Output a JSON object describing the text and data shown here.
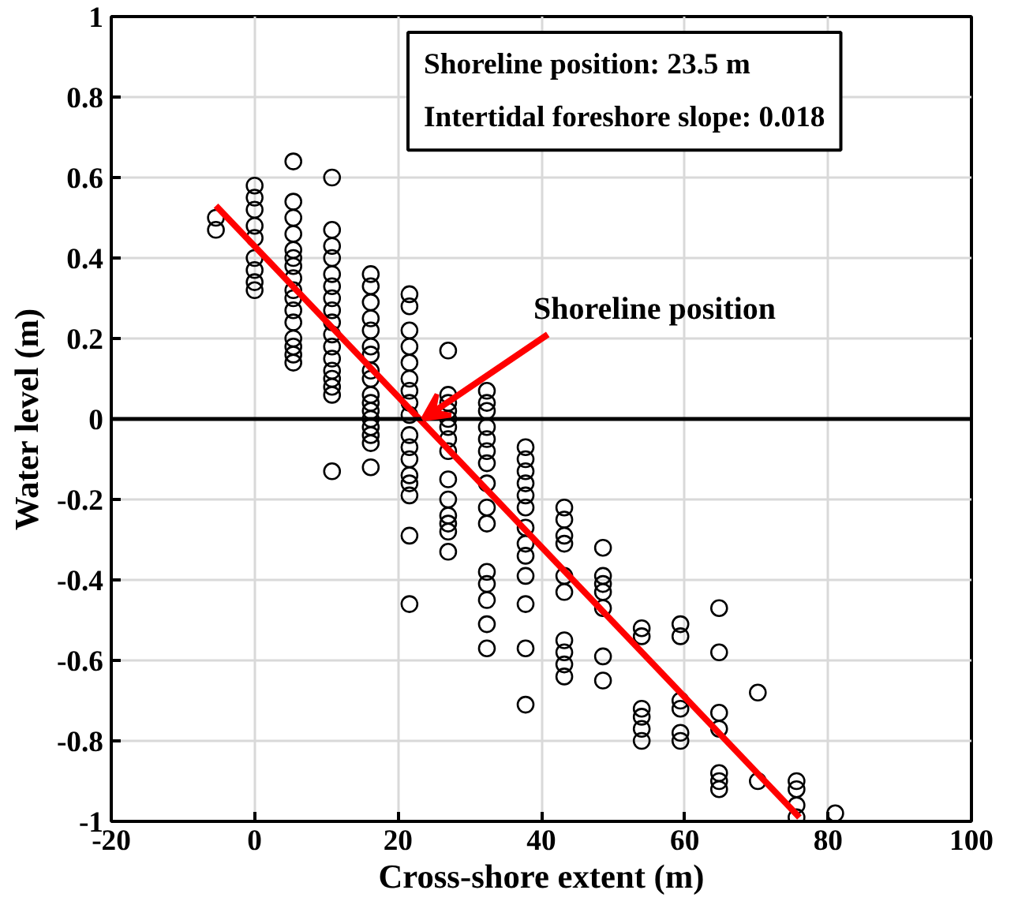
{
  "chart_data": {
    "type": "scatter",
    "xlabel": "Cross-shore extent (m)",
    "ylabel": "Water level (m)",
    "xlim": [
      -20,
      100
    ],
    "ylim": [
      -1,
      1
    ],
    "xticks": [
      -20,
      0,
      20,
      40,
      60,
      80,
      100
    ],
    "yticks": [
      -1,
      -0.8,
      -0.6,
      -0.4,
      -0.2,
      0,
      0.2,
      0.4,
      0.6,
      0.8,
      1
    ],
    "grid": true,
    "annotations": [
      "Shoreline position: 23.5 m",
      "Intertidal foreshore slope: 0.018",
      {
        "text": "Shoreline position",
        "x": 23.5,
        "y": 0
      }
    ],
    "ref_lines": [
      {
        "axis": "y",
        "value": 0,
        "color": "#000000"
      }
    ],
    "series": [
      {
        "type": "scatter",
        "marker": "circle",
        "color": "#000000",
        "x": [
          -5.4,
          -5.4,
          0,
          0,
          0,
          0,
          0,
          0,
          0,
          0,
          0,
          5.4,
          5.4,
          5.4,
          5.4,
          5.4,
          5.4,
          5.4,
          5.4,
          5.4,
          5.4,
          5.4,
          5.4,
          5.4,
          5.4,
          5.4,
          5.4,
          10.8,
          10.8,
          10.8,
          10.8,
          10.8,
          10.8,
          10.8,
          10.8,
          10.8,
          10.8,
          10.8,
          10.8,
          10.8,
          10.8,
          10.8,
          10.8,
          10.8,
          16.2,
          16.2,
          16.2,
          16.2,
          16.2,
          16.2,
          16.2,
          16.2,
          16.2,
          16.2,
          16.2,
          16.2,
          16.2,
          16.2,
          16.2,
          16.2,
          16.2,
          21.6,
          21.6,
          21.6,
          21.6,
          21.6,
          21.6,
          21.6,
          21.6,
          21.6,
          21.6,
          21.6,
          21.6,
          21.6,
          21.6,
          21.6,
          21.6,
          21.6,
          27,
          27,
          27,
          27,
          27,
          27,
          27,
          27,
          27,
          27,
          27,
          27,
          27,
          27,
          32.4,
          32.4,
          32.4,
          32.4,
          32.4,
          32.4,
          32.4,
          32.4,
          32.4,
          32.4,
          32.4,
          32.4,
          32.4,
          32.4,
          32.4,
          37.8,
          37.8,
          37.8,
          37.8,
          37.8,
          37.8,
          37.8,
          37.8,
          37.8,
          37.8,
          37.8,
          37.8,
          37.8,
          43.2,
          43.2,
          43.2,
          43.2,
          43.2,
          43.2,
          43.2,
          43.2,
          43.2,
          43.2,
          48.6,
          48.6,
          48.6,
          48.6,
          48.6,
          48.6,
          48.6,
          54,
          54,
          54,
          54,
          54,
          54,
          59.4,
          59.4,
          59.4,
          59.4,
          59.4,
          59.4,
          64.8,
          64.8,
          64.8,
          64.8,
          64.8,
          64.8,
          64.8,
          70.2,
          70.2,
          75.6,
          75.6,
          75.6,
          75.6,
          81
        ],
        "values": [
          0.5,
          0.47,
          0.58,
          0.55,
          0.52,
          0.48,
          0.45,
          0.4,
          0.37,
          0.34,
          0.32,
          0.64,
          0.54,
          0.5,
          0.46,
          0.42,
          0.4,
          0.38,
          0.35,
          0.32,
          0.3,
          0.27,
          0.24,
          0.2,
          0.18,
          0.16,
          0.14,
          0.6,
          0.47,
          0.43,
          0.4,
          0.36,
          0.33,
          0.3,
          0.27,
          0.24,
          0.21,
          0.18,
          0.15,
          0.12,
          0.1,
          0.08,
          0.06,
          -0.13,
          0.36,
          0.33,
          0.29,
          0.25,
          0.22,
          0.18,
          0.16,
          0.12,
          0.1,
          0.06,
          0.04,
          0.02,
          0.0,
          -0.02,
          -0.04,
          -0.06,
          -0.12,
          0.31,
          0.28,
          0.22,
          0.18,
          0.14,
          0.1,
          0.07,
          0.04,
          0.01,
          -0.04,
          -0.07,
          -0.1,
          -0.14,
          -0.16,
          -0.19,
          -0.29,
          -0.46,
          0.17,
          0.06,
          0.04,
          0.02,
          0.0,
          -0.02,
          -0.05,
          -0.08,
          -0.15,
          -0.2,
          -0.24,
          -0.26,
          -0.28,
          -0.33,
          0.07,
          0.04,
          0.02,
          -0.02,
          -0.05,
          -0.08,
          -0.11,
          -0.16,
          -0.22,
          -0.26,
          -0.38,
          -0.41,
          -0.45,
          -0.51,
          -0.57,
          -0.07,
          -0.1,
          -0.13,
          -0.16,
          -0.19,
          -0.22,
          -0.27,
          -0.31,
          -0.34,
          -0.39,
          -0.46,
          -0.57,
          -0.71,
          -0.22,
          -0.25,
          -0.29,
          -0.31,
          -0.39,
          -0.43,
          -0.55,
          -0.58,
          -0.61,
          -0.64,
          -0.32,
          -0.39,
          -0.41,
          -0.43,
          -0.47,
          -0.59,
          -0.65,
          -0.52,
          -0.54,
          -0.72,
          -0.74,
          -0.77,
          -0.8,
          -0.51,
          -0.54,
          -0.7,
          -0.72,
          -0.78,
          -0.8,
          -0.47,
          -0.58,
          -0.73,
          -0.77,
          -0.88,
          -0.9,
          -0.92,
          -0.68,
          -0.9,
          -0.9,
          -0.92,
          -0.96,
          -0.99,
          -0.98
        ]
      },
      {
        "type": "line",
        "color": "#ff0000",
        "x": [
          -5.4,
          76
        ],
        "values": [
          0.53,
          -0.99
        ]
      }
    ]
  }
}
